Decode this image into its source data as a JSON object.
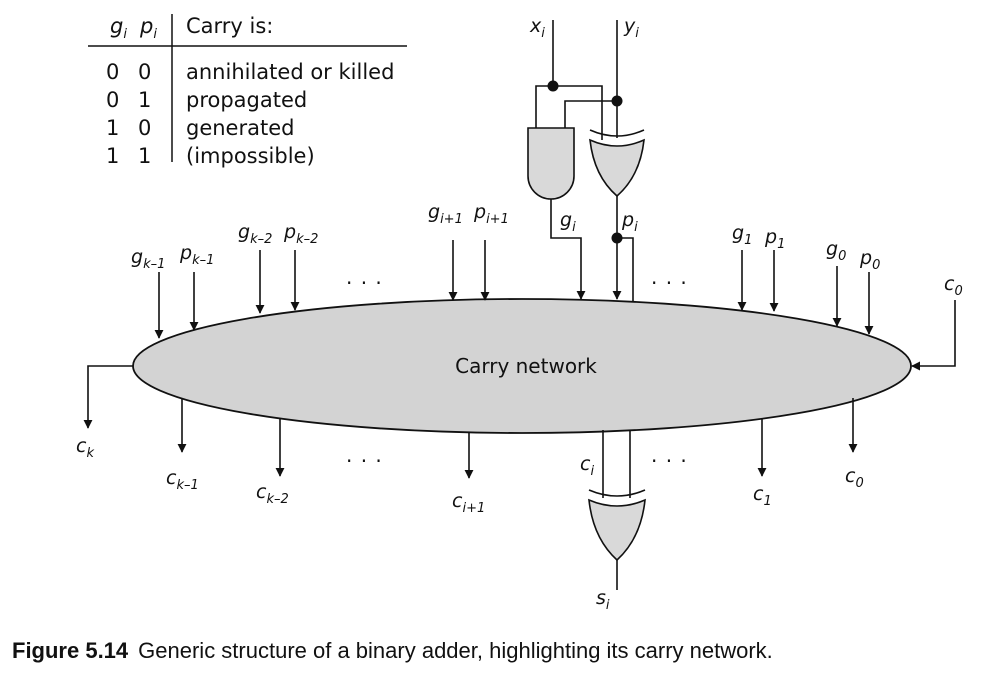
{
  "table": {
    "header_g": "g",
    "header_g_sub": "i",
    "header_p": "p",
    "header_p_sub": "i",
    "header_label": "Carry is:",
    "rows": [
      {
        "g": "0",
        "p": "0",
        "meaning": "annihilated or killed"
      },
      {
        "g": "0",
        "p": "1",
        "meaning": "propagated"
      },
      {
        "g": "1",
        "p": "0",
        "meaning": "generated"
      },
      {
        "g": "1",
        "p": "1",
        "meaning": "(impossible)"
      }
    ]
  },
  "inputs": {
    "x": {
      "base": "x",
      "sub": "i"
    },
    "y": {
      "base": "y",
      "sub": "i"
    },
    "gi": {
      "base": "g",
      "sub": "i"
    },
    "pi": {
      "base": "p",
      "sub": "i"
    }
  },
  "top_labels": [
    {
      "g": "g",
      "g_sub": "k–1",
      "p": "p",
      "p_sub": "k–1"
    },
    {
      "g": "g",
      "g_sub": "k–2",
      "p": "p",
      "p_sub": "k–2"
    },
    {
      "g": "g",
      "g_sub": "i+1",
      "p": "p",
      "p_sub": "i+1"
    },
    {
      "g": "g",
      "g_sub": "1",
      "p": "p",
      "p_sub": "1"
    },
    {
      "g": "g",
      "g_sub": "0",
      "p": "p",
      "p_sub": "0"
    }
  ],
  "c0_in": {
    "base": "c",
    "sub": "0"
  },
  "network_label": "Carry network",
  "outputs": [
    {
      "base": "c",
      "sub": "k"
    },
    {
      "base": "c",
      "sub": "k–1"
    },
    {
      "base": "c",
      "sub": "k–2"
    },
    {
      "base": "c",
      "sub": "i+1"
    },
    {
      "base": "c",
      "sub": "i"
    },
    {
      "base": "c",
      "sub": "1"
    },
    {
      "base": "c",
      "sub": "0"
    }
  ],
  "sum_out": {
    "base": "s",
    "sub": "i"
  },
  "ellipsis": "· · ·",
  "caption": {
    "number": "Figure 5.14",
    "text": "Generic structure of a binary adder, highlighting its carry network."
  }
}
